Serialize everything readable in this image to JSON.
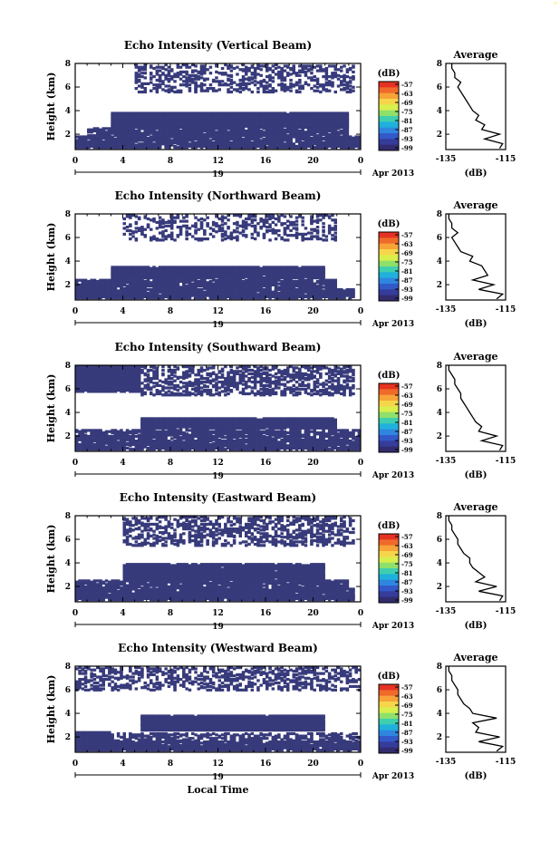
{
  "figure": {
    "xlabel": "Local Time",
    "date_label": "Apr 2013",
    "day_label": "19",
    "cbar_unit": "(dB)",
    "cbar_ticks": [
      "-57",
      "-63",
      "-69",
      "-75",
      "-81",
      "-87",
      "-93",
      "-99"
    ],
    "cbar_colors": [
      "#e53222",
      "#f06a2a",
      "#f7a338",
      "#f6d54a",
      "#d8ef4c",
      "#8fe06a",
      "#3fcfae",
      "#1fb1dc",
      "#2f86df",
      "#3359c8",
      "#353c9a",
      "#322c6e"
    ],
    "heatmap_color": "#373a7b",
    "avg_title": "Average",
    "avg_xlabel": "(dB)"
  },
  "chart_data": [
    {
      "type": "heatmap",
      "title": "Echo Intensity (Vertical Beam)",
      "ylabel": "Height (km)",
      "xlabel": "Local Time",
      "x_ticks": [
        "0",
        "4",
        "8",
        "12",
        "16",
        "20",
        "0"
      ],
      "xlim": [
        0,
        24
      ],
      "y_ticks": [
        "2",
        "4",
        "6",
        "8"
      ],
      "ylim": [
        0.7,
        8
      ],
      "colorbar_range_db": [
        -99,
        -57
      ],
      "seed": 11,
      "bands": [
        {
          "t0": 0,
          "t1": 24,
          "h0": 0.9,
          "h1": 1.9,
          "fill": 0.82
        },
        {
          "t0": 1,
          "t1": 23,
          "h0": 1.9,
          "h1": 2.6,
          "fill": 0.78
        },
        {
          "t0": 3,
          "t1": 23,
          "h0": 2.6,
          "h1": 3.85,
          "fill": 0.97
        },
        {
          "t0": 5,
          "t1": 23.5,
          "h0": 5.6,
          "h1": 8,
          "fill": 0.3
        }
      ],
      "average": {
        "title": "Average",
        "xlabel": "(dB)",
        "xlim": [
          -135,
          -115
        ],
        "x_ticks": [
          "-135",
          "-115"
        ],
        "ylim": [
          0.7,
          8
        ],
        "y_ticks": [
          "2",
          "4",
          "6",
          "8"
        ],
        "height_km": [
          0.8,
          1.2,
          1.6,
          2.0,
          2.4,
          2.8,
          3.2,
          3.6,
          4.0,
          4.4,
          4.8,
          5.2,
          5.6,
          6.0,
          6.4,
          6.8,
          7.2,
          7.6,
          8.0
        ],
        "db": [
          -117,
          -116,
          -122,
          -117,
          -123,
          -122,
          -125,
          -124,
          -126,
          -127,
          -128,
          -129,
          -130,
          -131,
          -130,
          -132,
          -132,
          -133,
          -133
        ]
      }
    },
    {
      "type": "heatmap",
      "title": "Echo Intensity (Northward Beam)",
      "ylabel": "Height (km)",
      "xlabel": "Local Time",
      "x_ticks": [
        "0",
        "4",
        "8",
        "12",
        "16",
        "20",
        "0"
      ],
      "xlim": [
        0,
        24
      ],
      "y_ticks": [
        "2",
        "4",
        "6",
        "8"
      ],
      "ylim": [
        0.7,
        8
      ],
      "colorbar_range_db": [
        -99,
        -57
      ],
      "seed": 23,
      "bands": [
        {
          "t0": 0,
          "t1": 23.5,
          "h0": 0.9,
          "h1": 1.7,
          "fill": 0.85
        },
        {
          "t0": 0,
          "t1": 22,
          "h0": 1.7,
          "h1": 2.5,
          "fill": 0.8
        },
        {
          "t0": 3,
          "t1": 21,
          "h0": 2.6,
          "h1": 3.6,
          "fill": 0.97
        },
        {
          "t0": 4,
          "t1": 22,
          "h0": 5.8,
          "h1": 8,
          "fill": 0.25
        }
      ],
      "average": {
        "title": "Average",
        "xlabel": "(dB)",
        "xlim": [
          -135,
          -115
        ],
        "x_ticks": [
          "-135",
          "-115"
        ],
        "ylim": [
          0.7,
          8
        ],
        "y_ticks": [
          "2",
          "4",
          "6",
          "8"
        ],
        "height_km": [
          0.8,
          1.2,
          1.6,
          2.0,
          2.4,
          2.8,
          3.2,
          3.6,
          4.0,
          4.4,
          4.8,
          5.2,
          5.6,
          6.0,
          6.4,
          6.8,
          7.2,
          7.6,
          8.0
        ],
        "db": [
          -118,
          -116,
          -124,
          -119,
          -126,
          -121,
          -122,
          -123,
          -127,
          -126,
          -130,
          -131,
          -132,
          -133,
          -131,
          -133,
          -133,
          -134,
          -134
        ]
      }
    },
    {
      "type": "heatmap",
      "title": "Echo Intensity (Southward Beam)",
      "ylabel": "Height (km)",
      "xlabel": "Local Time",
      "x_ticks": [
        "0",
        "4",
        "8",
        "12",
        "16",
        "20",
        "0"
      ],
      "xlim": [
        0,
        24
      ],
      "y_ticks": [
        "2",
        "4",
        "6",
        "8"
      ],
      "ylim": [
        0.7,
        8
      ],
      "colorbar_range_db": [
        -99,
        -57
      ],
      "seed": 37,
      "bands": [
        {
          "t0": 0,
          "t1": 24,
          "h0": 0.9,
          "h1": 1.7,
          "fill": 0.85
        },
        {
          "t0": 0,
          "t1": 24,
          "h0": 1.7,
          "h1": 2.6,
          "fill": 0.7
        },
        {
          "t0": 5.5,
          "t1": 22,
          "h0": 2.7,
          "h1": 3.6,
          "fill": 0.97
        },
        {
          "t0": 0,
          "t1": 5.5,
          "h0": 5.8,
          "h1": 8,
          "fill": 0.95
        },
        {
          "t0": 5.5,
          "t1": 23.5,
          "h0": 5.5,
          "h1": 8,
          "fill": 0.4
        }
      ],
      "average": {
        "title": "Average",
        "xlabel": "(dB)",
        "xlim": [
          -135,
          -115
        ],
        "x_ticks": [
          "-135",
          "-115"
        ],
        "ylim": [
          0.7,
          8
        ],
        "y_ticks": [
          "2",
          "4",
          "6",
          "8"
        ],
        "height_km": [
          0.8,
          1.2,
          1.6,
          2.0,
          2.4,
          2.8,
          3.2,
          3.6,
          4.0,
          4.4,
          4.8,
          5.2,
          5.6,
          6.0,
          6.4,
          6.8,
          7.2,
          7.6,
          8.0
        ],
        "db": [
          -117,
          -116,
          -123,
          -118,
          -124,
          -123,
          -125,
          -126,
          -127,
          -128,
          -129,
          -130,
          -130,
          -131,
          -132,
          -132,
          -133,
          -134,
          -134
        ]
      }
    },
    {
      "type": "heatmap",
      "title": "Echo Intensity (Eastward Beam)",
      "ylabel": "Height (km)",
      "xlabel": "Local Time",
      "x_ticks": [
        "0",
        "4",
        "8",
        "12",
        "16",
        "20",
        "0"
      ],
      "xlim": [
        0,
        24
      ],
      "y_ticks": [
        "2",
        "4",
        "6",
        "8"
      ],
      "ylim": [
        0.7,
        8
      ],
      "colorbar_range_db": [
        -99,
        -57
      ],
      "seed": 51,
      "bands": [
        {
          "t0": 0,
          "t1": 23.5,
          "h0": 0.9,
          "h1": 1.9,
          "fill": 0.88
        },
        {
          "t0": 0,
          "t1": 23,
          "h0": 1.9,
          "h1": 2.6,
          "fill": 0.75
        },
        {
          "t0": 4,
          "t1": 21,
          "h0": 2.6,
          "h1": 4.0,
          "fill": 0.95
        },
        {
          "t0": 4,
          "t1": 23.5,
          "h0": 5.5,
          "h1": 8,
          "fill": 0.38
        }
      ],
      "average": {
        "title": "Average",
        "xlabel": "(dB)",
        "xlim": [
          -135,
          -115
        ],
        "x_ticks": [
          "-135",
          "-115"
        ],
        "ylim": [
          0.7,
          8
        ],
        "y_ticks": [
          "2",
          "4",
          "6",
          "8"
        ],
        "height_km": [
          0.8,
          1.2,
          1.6,
          2.0,
          2.4,
          2.8,
          3.2,
          3.6,
          4.0,
          4.4,
          4.8,
          5.2,
          5.6,
          6.0,
          6.4,
          6.8,
          7.2,
          7.6,
          8.0
        ],
        "db": [
          -117,
          -116,
          -124,
          -118,
          -125,
          -122,
          -124,
          -126,
          -127,
          -127,
          -129,
          -130,
          -131,
          -131,
          -132,
          -133,
          -133,
          -134,
          -134
        ]
      }
    },
    {
      "type": "heatmap",
      "title": "Echo Intensity (Westward Beam)",
      "ylabel": "Height (km)",
      "xlabel": "Local Time",
      "x_ticks": [
        "0",
        "4",
        "8",
        "12",
        "16",
        "20",
        "0"
      ],
      "xlim": [
        0,
        24
      ],
      "y_ticks": [
        "2",
        "4",
        "6",
        "8"
      ],
      "ylim": [
        0.7,
        8
      ],
      "colorbar_range_db": [
        -99,
        -57
      ],
      "seed": 67,
      "bands": [
        {
          "t0": 0,
          "t1": 24,
          "h0": 0.9,
          "h1": 1.7,
          "fill": 0.88
        },
        {
          "t0": 0,
          "t1": 3,
          "h0": 1.7,
          "h1": 2.5,
          "fill": 0.9
        },
        {
          "t0": 3,
          "t1": 24,
          "h0": 1.7,
          "h1": 2.4,
          "fill": 0.4
        },
        {
          "t0": 5.5,
          "t1": 21,
          "h0": 2.6,
          "h1": 3.9,
          "fill": 0.97
        },
        {
          "t0": 0,
          "t1": 24,
          "h0": 6.0,
          "h1": 8,
          "fill": 0.35
        }
      ],
      "average": {
        "title": "Average",
        "xlabel": "(dB)",
        "xlim": [
          -135,
          -115
        ],
        "x_ticks": [
          "-135",
          "-115"
        ],
        "ylim": [
          0.7,
          8
        ],
        "y_ticks": [
          "2",
          "4",
          "6",
          "8"
        ],
        "height_km": [
          0.8,
          1.2,
          1.6,
          2.0,
          2.4,
          2.8,
          3.2,
          3.6,
          4.0,
          4.4,
          4.8,
          5.2,
          5.6,
          6.0,
          6.4,
          6.8,
          7.2,
          7.6,
          8.0
        ],
        "db": [
          -118,
          -116,
          -124,
          -117,
          -125,
          -124,
          -126,
          -118,
          -126,
          -127,
          -129,
          -130,
          -131,
          -131,
          -132,
          -133,
          -133,
          -134,
          -134
        ]
      }
    }
  ]
}
